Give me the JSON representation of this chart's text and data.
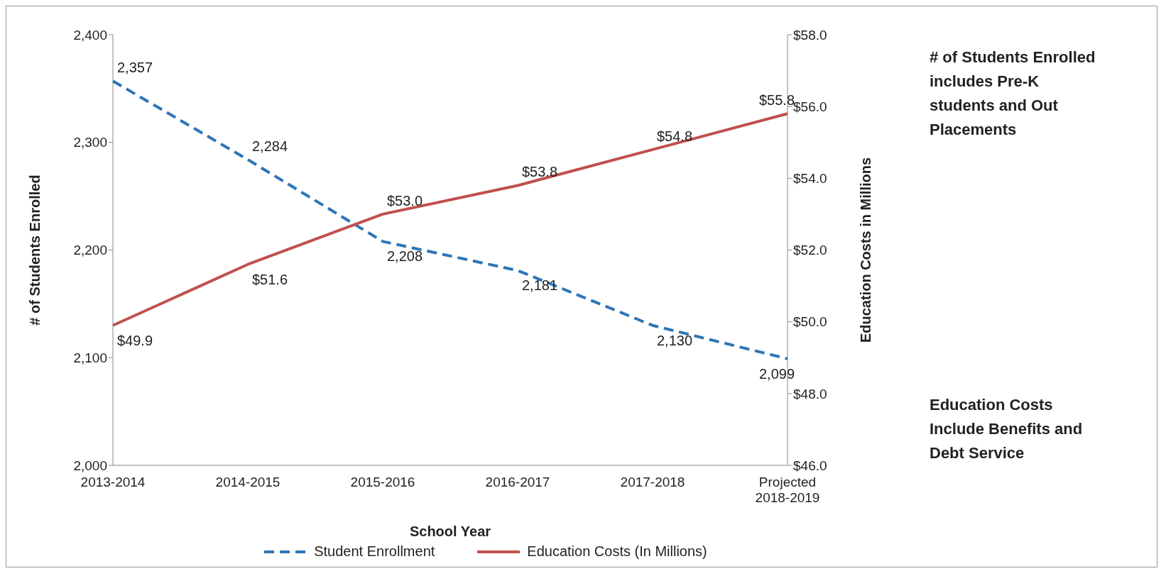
{
  "chart_data": {
    "type": "line",
    "xlabel": "School Year",
    "ylabel": "# of Students Enrolled",
    "y2label": "Education Costs in Millions",
    "categories": [
      "2013-2014",
      "2014-2015",
      "2015-2016",
      "2016-2017",
      "2017-2018",
      "Projected 2018-2019"
    ],
    "series": [
      {
        "name": "Student Enrollment",
        "color": "#2e75b6",
        "line_style": "dashed",
        "values": [
          2357,
          2284,
          2208,
          2181,
          2130,
          2099
        ],
        "value_labels": [
          "2,357",
          "2,284",
          "2,208",
          "2,181",
          "2,130",
          "2,099"
        ]
      },
      {
        "name": "Education Costs (In Millions)",
        "color": "#c0504d",
        "line_style": "solid",
        "axis": "y2",
        "values": [
          49.9,
          51.6,
          53.0,
          53.8,
          54.8,
          55.8
        ],
        "value_labels": [
          "$49.9",
          "$51.6",
          "$53.0",
          "$53.8",
          "$54.8",
          "$55.8"
        ]
      }
    ],
    "ylim": [
      2000,
      2400
    ],
    "yticks": [
      {
        "value": 2000,
        "label": "2,000"
      },
      {
        "value": 2100,
        "label": "2,100"
      },
      {
        "value": 2200,
        "label": "2,200"
      },
      {
        "value": 2300,
        "label": "2,300"
      },
      {
        "value": 2400,
        "label": "2,400"
      }
    ],
    "y2lim": [
      46,
      58
    ],
    "y2ticks": [
      {
        "value": 46,
        "label": "$46.0"
      },
      {
        "value": 48,
        "label": "$48.0"
      },
      {
        "value": 50,
        "label": "$50.0"
      },
      {
        "value": 52,
        "label": "$52.0"
      },
      {
        "value": 54,
        "label": "$54.0"
      },
      {
        "value": 56,
        "label": "$56.0"
      },
      {
        "value": 58,
        "label": "$58.0"
      }
    ],
    "grid": false,
    "legend": "bottom",
    "marker": "none",
    "annotations": [
      "# of Students Enrolled includes Pre-K students and Out Placements",
      "Education Costs Include Benefits and Debt Service"
    ]
  }
}
